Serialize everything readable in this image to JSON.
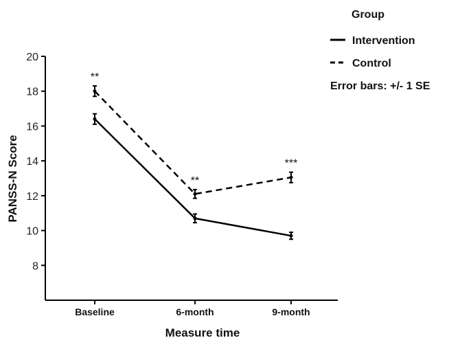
{
  "chart_data": {
    "type": "line",
    "categories": [
      "Baseline",
      "6-month",
      "9-month"
    ],
    "series": [
      {
        "name": "Intervention",
        "line_style": "solid",
        "values": [
          16.4,
          10.7,
          9.7
        ],
        "se": [
          0.3,
          0.25,
          0.2
        ]
      },
      {
        "name": "Control",
        "line_style": "dashed",
        "values": [
          18.0,
          12.1,
          13.05
        ],
        "se": [
          0.3,
          0.25,
          0.3
        ]
      }
    ],
    "significance": [
      {
        "category": "Baseline",
        "label": "**"
      },
      {
        "category": "6-month",
        "label": "**"
      },
      {
        "category": "9-month",
        "label": "***"
      }
    ],
    "xlabel": "Measure time",
    "ylabel": "PANSS-N Score",
    "ylim": [
      6,
      20
    ],
    "yticks": [
      8,
      10,
      12,
      14,
      16,
      18,
      20
    ],
    "grid": false,
    "legend": {
      "title": "Group",
      "note": "Error bars: +/- 1 SE",
      "placement": "top-right"
    },
    "colors": {
      "line": "#000000",
      "text": "#111111",
      "axis": "#000000"
    }
  }
}
